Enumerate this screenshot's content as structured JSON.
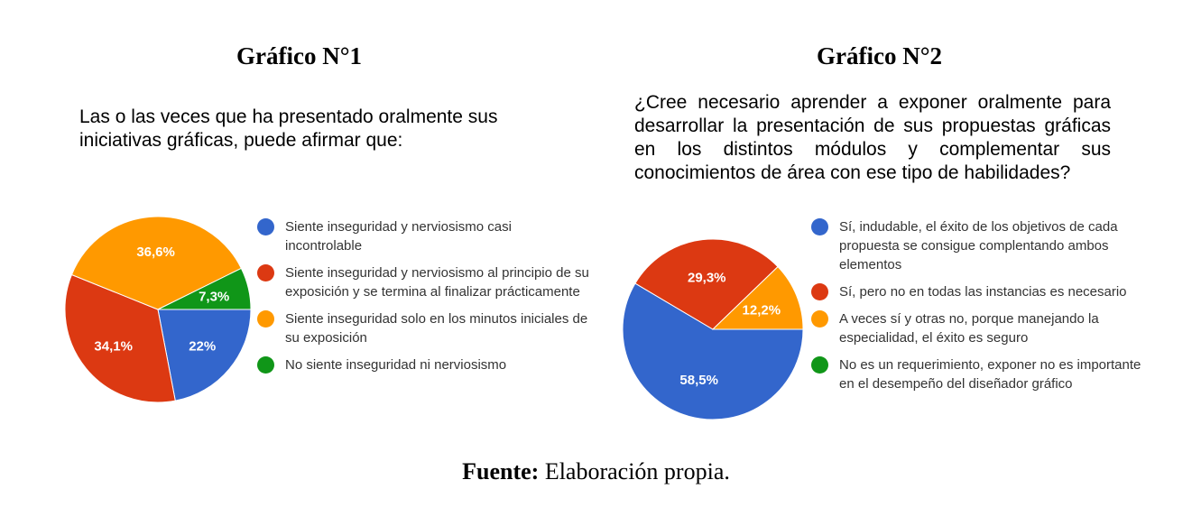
{
  "chart_data": [
    {
      "type": "pie",
      "title": "Gráfico N°1",
      "question": "Las o las veces que ha presentado oralmente sus iniciativas gráficas, puede afirmar que:",
      "slices": [
        {
          "label": "Siente inseguridad y nerviosismo casi incontrolable",
          "value": 22,
          "display": "22%",
          "color": "#3366cc"
        },
        {
          "label": "Siente inseguridad y nerviosismo al principio de su exposición y se termina al finalizar prácticamente",
          "value": 34.1,
          "display": "34,1%",
          "color": "#dc3912"
        },
        {
          "label": "Siente inseguridad solo en los minutos iniciales de su exposición",
          "value": 36.6,
          "display": "36,6%",
          "color": "#ff9900"
        },
        {
          "label": "No siente inseguridad ni nerviosismo",
          "value": 7.3,
          "display": "7,3%",
          "color": "#109618"
        }
      ],
      "legend_position": "right"
    },
    {
      "type": "pie",
      "title": "Gráfico N°2",
      "question": "¿Cree necesario aprender a exponer oralmente para desarrollar la presentación de sus propuestas gráficas en los distintos módulos y complementar sus conocimientos de área con ese tipo de habilidades?",
      "slices": [
        {
          "label": "Sí, indudable, el éxito de los objetivos de cada propuesta se consigue complentando ambos elementos",
          "value": 58.5,
          "display": "58,5%",
          "color": "#3366cc"
        },
        {
          "label": "Sí, pero no en todas las instancias es necesario",
          "value": 29.3,
          "display": "29,3%",
          "color": "#dc3912"
        },
        {
          "label": "A veces sí y otras no, porque manejando la especialidad, el éxito es seguro",
          "value": 12.2,
          "display": "12,2%",
          "color": "#ff9900"
        },
        {
          "label": "No es un  requerimiento, exponer no es importante en el desempeño del diseñador gráfico",
          "value": 0,
          "display": "",
          "color": "#109618"
        }
      ],
      "legend_position": "right"
    }
  ],
  "source": {
    "label": "Fuente:",
    "text": "Elaboración propia."
  }
}
